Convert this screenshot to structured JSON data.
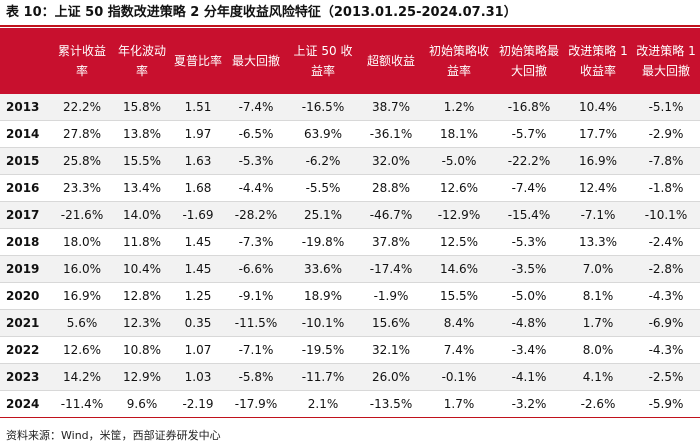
{
  "title": "表 10：上证 50 指数改进策略 2 分年度收益风险特征（2013.01.25-2024.07.31）",
  "headers": [
    "",
    "累计收益率",
    "年化波动率",
    "夏普比率",
    "最大回撤",
    "上证 50 收益率",
    "超额收益",
    "初始策略收益率",
    "初始策略最大回撤",
    "改进策略 1 收益率",
    "改进策略 1 最大回撤"
  ],
  "rows": [
    [
      "2013",
      "22.2%",
      "15.8%",
      "1.51",
      "-7.4%",
      "-16.5%",
      "38.7%",
      "1.2%",
      "-16.8%",
      "10.4%",
      "-5.1%"
    ],
    [
      "2014",
      "27.8%",
      "13.8%",
      "1.97",
      "-6.5%",
      "63.9%",
      "-36.1%",
      "18.1%",
      "-5.7%",
      "17.7%",
      "-2.9%"
    ],
    [
      "2015",
      "25.8%",
      "15.5%",
      "1.63",
      "-5.3%",
      "-6.2%",
      "32.0%",
      "-5.0%",
      "-22.2%",
      "16.9%",
      "-7.8%"
    ],
    [
      "2016",
      "23.3%",
      "13.4%",
      "1.68",
      "-4.4%",
      "-5.5%",
      "28.8%",
      "12.6%",
      "-7.4%",
      "12.4%",
      "-1.8%"
    ],
    [
      "2017",
      "-21.6%",
      "14.0%",
      "-1.69",
      "-28.2%",
      "25.1%",
      "-46.7%",
      "-12.9%",
      "-15.4%",
      "-7.1%",
      "-10.1%"
    ],
    [
      "2018",
      "18.0%",
      "11.8%",
      "1.45",
      "-7.3%",
      "-19.8%",
      "37.8%",
      "12.5%",
      "-5.3%",
      "13.3%",
      "-2.4%"
    ],
    [
      "2019",
      "16.0%",
      "10.4%",
      "1.45",
      "-6.6%",
      "33.6%",
      "-17.4%",
      "14.6%",
      "-3.5%",
      "7.0%",
      "-2.8%"
    ],
    [
      "2020",
      "16.9%",
      "12.8%",
      "1.25",
      "-9.1%",
      "18.9%",
      "-1.9%",
      "15.5%",
      "-5.0%",
      "8.1%",
      "-4.3%"
    ],
    [
      "2021",
      "5.6%",
      "12.3%",
      "0.35",
      "-11.5%",
      "-10.1%",
      "15.6%",
      "8.4%",
      "-4.8%",
      "1.7%",
      "-6.9%"
    ],
    [
      "2022",
      "12.6%",
      "10.8%",
      "1.07",
      "-7.1%",
      "-19.5%",
      "32.1%",
      "7.4%",
      "-3.4%",
      "8.0%",
      "-4.3%"
    ],
    [
      "2023",
      "14.2%",
      "12.9%",
      "1.03",
      "-5.8%",
      "-11.7%",
      "26.0%",
      "-0.1%",
      "-4.1%",
      "4.1%",
      "-2.5%"
    ],
    [
      "2024",
      "-11.4%",
      "9.6%",
      "-2.19",
      "-17.9%",
      "2.1%",
      "-13.5%",
      "1.7%",
      "-3.2%",
      "-2.6%",
      "-5.9%"
    ]
  ],
  "source": "资料来源：Wind，米筐，西部证券研发中心",
  "colors": {
    "header_bg": "#c8102e",
    "header_text": "#ffffff",
    "stripe": "#f2f2f2",
    "rule": "#c0121c"
  }
}
